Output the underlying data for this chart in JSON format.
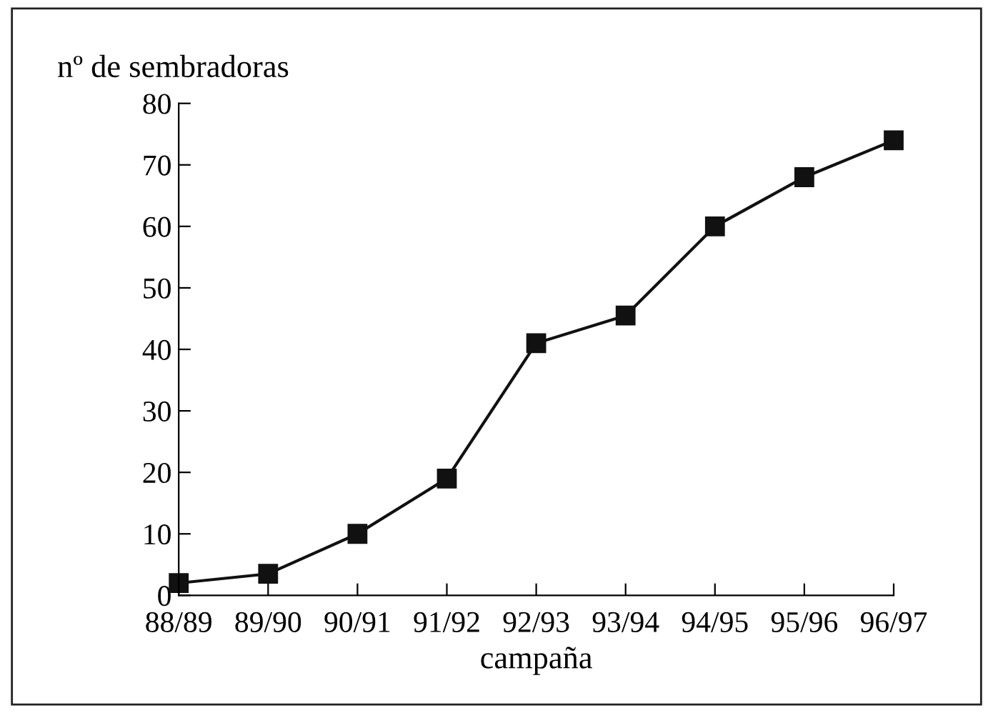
{
  "chart_data": {
    "type": "line",
    "ylabel": "nº de sembradoras",
    "xlabel": "campaña",
    "categories": [
      "88/89",
      "89/90",
      "90/91",
      "91/92",
      "92/93",
      "93/94",
      "94/95",
      "95/96",
      "96/97"
    ],
    "series": [
      {
        "color": "#111111",
        "values": [
          2,
          3.5,
          10,
          19,
          41,
          45.5,
          60,
          68,
          74
        ]
      }
    ],
    "ylim": [
      0,
      80
    ],
    "yticks": [
      0,
      10,
      20,
      30,
      40,
      50,
      60,
      70,
      80
    ],
    "marker": "square",
    "line_style": "solid",
    "grid": false,
    "legend": false
  }
}
